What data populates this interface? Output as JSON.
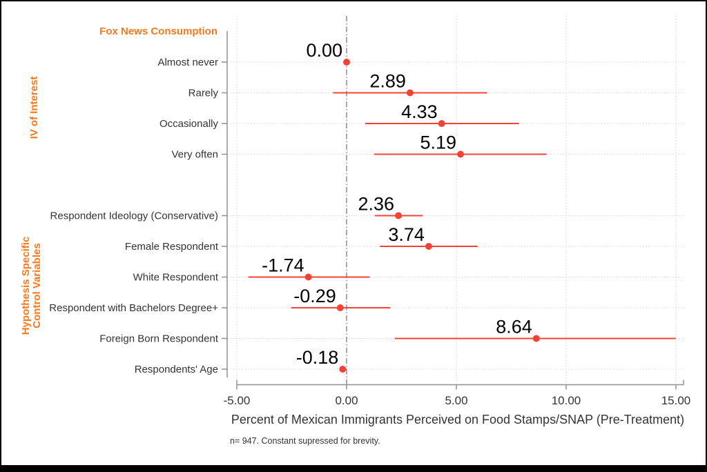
{
  "figure": {
    "section_header": "Fox News Consumption",
    "side_labels": [
      {
        "text": "IV of Interest",
        "lines": [
          "IV of Interest"
        ]
      },
      {
        "text": "Hypothesis Specific Control Variables",
        "lines": [
          "Hypothesis Specific",
          "Control Variables"
        ]
      }
    ],
    "xlabel": "Percent of Mexican Immigrants Perceived on Food Stamps/SNAP (Pre-Treatment)",
    "note": "n= 947. Constant supressed for brevity."
  },
  "chart_data": {
    "type": "scatter",
    "subtype": "coefficient-plot-with-confidence-intervals",
    "title": "",
    "xlabel": "Percent of Mexican Immigrants Perceived on Food Stamps/SNAP (Pre-Treatment)",
    "ylabel": "",
    "note": "n= 947. Constant supressed for brevity.",
    "xlim": [
      -5.45,
      15.4
    ],
    "x_ticks": [
      -5,
      0,
      5,
      10,
      15
    ],
    "x_tick_labels": [
      "-5.00",
      "0.00",
      "5.00",
      "10.00",
      "15.00"
    ],
    "grid": true,
    "zero_reference_line": 0,
    "legend": "none",
    "groups": [
      {
        "label": "IV of Interest",
        "rows": [
          0,
          1,
          2,
          3
        ]
      },
      {
        "label": "Hypothesis Specific Control Variables",
        "rows": [
          4,
          5,
          6,
          7,
          8,
          9
        ]
      }
    ],
    "rows": [
      {
        "label": "Almost never",
        "slot": 1,
        "estimate": 0.0,
        "estimate_label": "0.00",
        "ci_low": 0.0,
        "ci_high": 0.0
      },
      {
        "label": "Rarely",
        "slot": 2,
        "estimate": 2.89,
        "estimate_label": "2.89",
        "ci_low": -0.62,
        "ci_high": 6.4
      },
      {
        "label": "Occasionally",
        "slot": 3,
        "estimate": 4.33,
        "estimate_label": "4.33",
        "ci_low": 0.85,
        "ci_high": 7.85
      },
      {
        "label": "Very often",
        "slot": 4,
        "estimate": 5.19,
        "estimate_label": "5.19",
        "ci_low": 1.25,
        "ci_high": 9.11
      },
      {
        "label": "Respondent Ideology (Conservative)",
        "slot": 6,
        "estimate": 2.36,
        "estimate_label": "2.36",
        "ci_low": 1.28,
        "ci_high": 3.47
      },
      {
        "label": "Female Respondent",
        "slot": 7,
        "estimate": 3.74,
        "estimate_label": "3.74",
        "ci_low": 1.52,
        "ci_high": 5.97
      },
      {
        "label": "White Respondent",
        "slot": 8,
        "estimate": -1.74,
        "estimate_label": "-1.74",
        "ci_low": -4.47,
        "ci_high": 1.05
      },
      {
        "label": "Respondent with Bachelors Degree+",
        "slot": 9,
        "estimate": -0.29,
        "estimate_label": "-0.29",
        "ci_low": -2.52,
        "ci_high": 1.99
      },
      {
        "label": "Foreign Born Respondent",
        "slot": 10,
        "estimate": 8.64,
        "estimate_label": "8.64",
        "ci_low": 2.2,
        "ci_high": 14.99
      },
      {
        "label": "Respondents' Age",
        "slot": 11,
        "estimate": -0.18,
        "estimate_label": "-0.18",
        "ci_low": -0.33,
        "ci_high": -0.03
      }
    ],
    "colors": {
      "point": "#f44336",
      "ci_line": "#f44336",
      "section_header": "#F8791D",
      "side_label": "#F8791D",
      "axis": "#909090",
      "gridline": "#d0d0d0",
      "zero_line": "#707070",
      "category_text": "#333333",
      "value_text": "#000000",
      "frame": "#000000"
    }
  }
}
